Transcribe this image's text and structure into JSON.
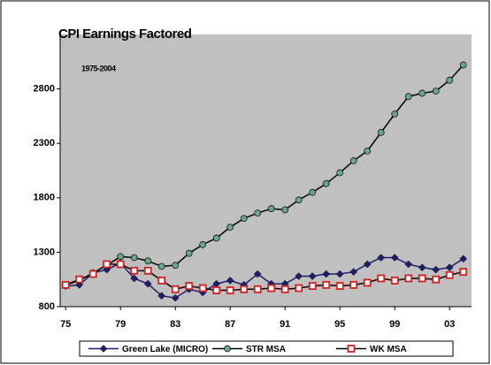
{
  "chart_data": {
    "type": "line",
    "title": "CPI Earnings Factored",
    "annotation": "1975-2004",
    "x": [
      1975,
      1976,
      1977,
      1978,
      1979,
      1980,
      1981,
      1982,
      1983,
      1984,
      1985,
      1986,
      1987,
      1988,
      1989,
      1990,
      1991,
      1992,
      1993,
      1994,
      1995,
      1996,
      1997,
      1998,
      1999,
      2000,
      2001,
      2002,
      2003,
      2004
    ],
    "xlim": [
      1974.6,
      2004.6
    ],
    "xticks": [
      {
        "value": 1975,
        "label": "75"
      },
      {
        "value": 1979,
        "label": "79"
      },
      {
        "value": 1983,
        "label": "83"
      },
      {
        "value": 1987,
        "label": "87"
      },
      {
        "value": 1991,
        "label": "91"
      },
      {
        "value": 1995,
        "label": "95"
      },
      {
        "value": 1999,
        "label": "99"
      },
      {
        "value": 2003,
        "label": "03"
      }
    ],
    "ylim": [
      800,
      3300
    ],
    "yticks": [
      800,
      1300,
      1800,
      2300,
      2800
    ],
    "series": [
      {
        "name": "Green Lake (MICRO)",
        "color": "#1f1f6e",
        "marker": "diamond",
        "values": [
          990,
          1000,
          1110,
          1140,
          1200,
          1060,
          1010,
          900,
          880,
          960,
          930,
          1010,
          1040,
          1000,
          1100,
          1010,
          1010,
          1080,
          1080,
          1100,
          1100,
          1120,
          1190,
          1250,
          1250,
          1190,
          1160,
          1140,
          1160,
          1240
        ]
      },
      {
        "name": "STR MSA",
        "color": "#6aa884",
        "marker": "circle",
        "values": [
          1000,
          1040,
          1110,
          1180,
          1260,
          1250,
          1220,
          1170,
          1180,
          1290,
          1370,
          1430,
          1530,
          1610,
          1660,
          1700,
          1690,
          1780,
          1850,
          1930,
          2030,
          2140,
          2230,
          2400,
          2570,
          2730,
          2760,
          2780,
          2880,
          3020
        ]
      },
      {
        "name": "WK MSA",
        "color": "#d02020",
        "marker": "square",
        "values": [
          1000,
          1050,
          1100,
          1190,
          1190,
          1130,
          1130,
          1040,
          960,
          990,
          970,
          950,
          950,
          960,
          960,
          970,
          960,
          970,
          990,
          1000,
          990,
          1000,
          1020,
          1060,
          1040,
          1060,
          1060,
          1050,
          1090,
          1120
        ]
      }
    ]
  }
}
